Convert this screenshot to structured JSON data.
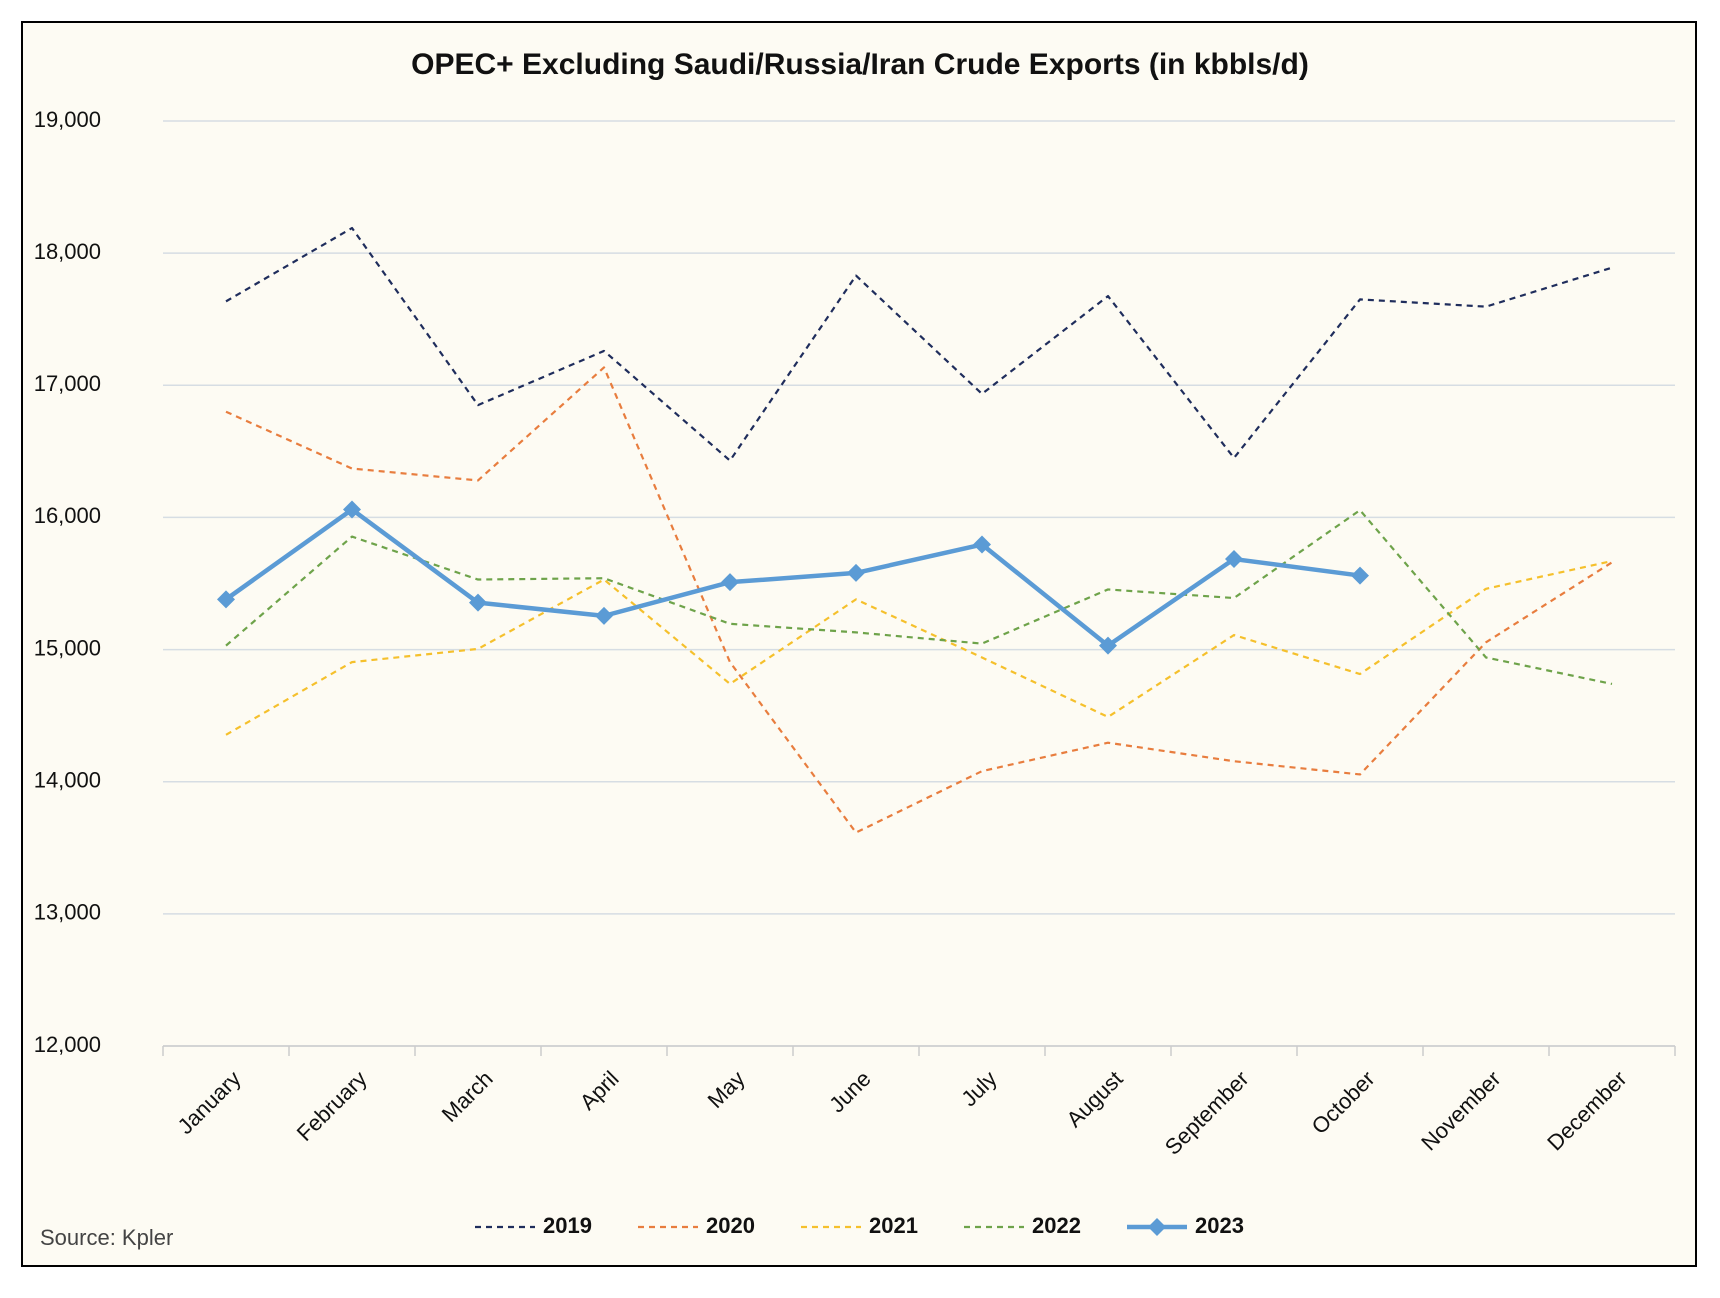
{
  "chart_data": {
    "type": "line",
    "title": "OPEC+ Excluding Saudi/Russia/Iran Crude Exports (in kbbls/d)",
    "source": "Source: Kpler",
    "categories": [
      "January",
      "February",
      "March",
      "April",
      "May",
      "June",
      "July",
      "August",
      "September",
      "October",
      "November",
      "December"
    ],
    "ylim": [
      12000,
      19000
    ],
    "yticks": [
      {
        "value": 12000,
        "label": "12,000"
      },
      {
        "value": 13000,
        "label": "13,000"
      },
      {
        "value": 14000,
        "label": "14,000"
      },
      {
        "value": 15000,
        "label": "15,000"
      },
      {
        "value": 16000,
        "label": "16,000"
      },
      {
        "value": 17000,
        "label": "17,000"
      },
      {
        "value": 18000,
        "label": "18,000"
      },
      {
        "value": 19000,
        "label": "19,000"
      }
    ],
    "grid": true,
    "legend": "bottom",
    "series": [
      {
        "name": "2019",
        "color": "#1f2d5c",
        "line_style": "dashed",
        "values": [
          17635,
          18190,
          16850,
          17260,
          16430,
          17830,
          16935,
          17675,
          16450,
          17650,
          17595,
          17890
        ]
      },
      {
        "name": "2020",
        "color": "#e87d3e",
        "line_style": "dashed",
        "values": [
          16800,
          16370,
          16280,
          17135,
          14905,
          13615,
          14080,
          14295,
          14155,
          14055,
          15055,
          15660
        ]
      },
      {
        "name": "2021",
        "color": "#f5c02c",
        "line_style": "dashed",
        "values": [
          14355,
          14905,
          15005,
          15530,
          14740,
          15380,
          14940,
          14490,
          15110,
          14815,
          15460,
          15670
        ]
      },
      {
        "name": "2022",
        "color": "#6ea34a",
        "line_style": "dashed",
        "values": [
          15030,
          15855,
          15530,
          15540,
          15195,
          15130,
          15045,
          15455,
          15390,
          16055,
          14940,
          14740
        ]
      },
      {
        "name": "2023",
        "color": "#5b9bd5",
        "line_style": "solid",
        "marker": "diamond",
        "values": [
          15380,
          16060,
          15355,
          15255,
          15510,
          15580,
          15795,
          15030,
          15685,
          15560,
          null,
          null
        ]
      }
    ]
  }
}
